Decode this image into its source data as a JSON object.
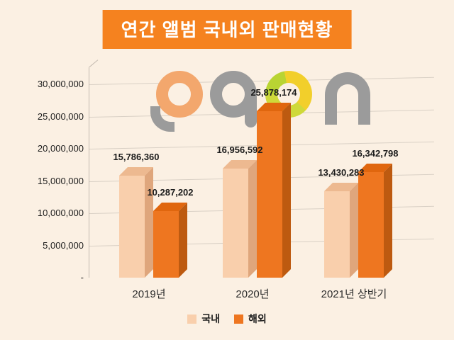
{
  "title": "연간 앨범 국내외 판매현황",
  "watermark": {
    "text": "gaon"
  },
  "colors": {
    "background": "#fbf0e3",
    "title_bg": "#f5821f",
    "title_text": "#ffffff",
    "domestic": {
      "front": "#f9cfac",
      "top": "#edb990",
      "side": "#dfa67c"
    },
    "overseas": {
      "front": "#ee7620",
      "top": "#e0660e",
      "side": "#bd5a10"
    },
    "gridline": "#d9d0c5",
    "axis": "#c3bab0",
    "text": "#1c1c1c",
    "logo_gray": "#9b9b9b",
    "logo_peach": "#f3a76d",
    "logo_green": "#b9d433",
    "logo_yellow": "#f2cf2b"
  },
  "chart_data": {
    "type": "bar",
    "style": "3d-column",
    "title": "연간 앨범 국내외 판매현황",
    "categories": [
      "2019년",
      "2020년",
      "2021년 상반기"
    ],
    "series": [
      {
        "key": "domestic",
        "name": "국내",
        "values": [
          15786360,
          16956592,
          13430283
        ],
        "labels": [
          "15,786,360",
          "16,956,592",
          "13,430,283"
        ]
      },
      {
        "key": "overseas",
        "name": "해외",
        "values": [
          10287202,
          25878174,
          16342798
        ],
        "labels": [
          "10,287,202",
          "25,878,174",
          "16,342,798"
        ]
      }
    ],
    "y_ticks": [
      "30,000,000",
      "25,000,000",
      "20,000,000",
      "15,000,000",
      "10,000,000",
      "5,000,000",
      "-"
    ],
    "ylim": [
      0,
      30000000
    ],
    "grid": true,
    "legend_position": "bottom"
  },
  "legend": {
    "items": [
      {
        "key": "domestic",
        "label": "국내"
      },
      {
        "key": "overseas",
        "label": "해외"
      }
    ]
  }
}
